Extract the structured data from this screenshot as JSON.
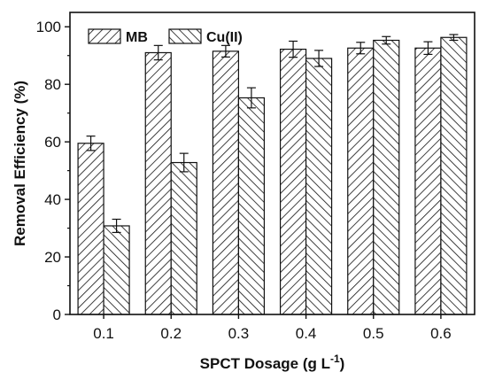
{
  "chart_data": {
    "type": "bar",
    "title": "",
    "xlabel_main": "SPCT Dosage (g L",
    "xlabel_sup": "-1",
    "xlabel_close": ")",
    "ylabel": "Removal Efficiency (%)",
    "categories": [
      "0.1",
      "0.2",
      "0.3",
      "0.4",
      "0.5",
      "0.6"
    ],
    "ylim": [
      0,
      105
    ],
    "yticks": [
      0,
      20,
      40,
      60,
      80,
      100
    ],
    "ytick_labels": [
      "0",
      "20",
      "40",
      "60",
      "80",
      "100"
    ],
    "legend_position": "top-left",
    "grid": false,
    "series": [
      {
        "name": "MB",
        "pattern": "hatch-forward",
        "values": [
          59.5,
          91.0,
          91.5,
          92.2,
          92.6,
          92.6
        ],
        "errors": [
          2.5,
          2.5,
          2.0,
          2.8,
          2.0,
          2.2
        ]
      },
      {
        "name": "Cu(II)",
        "pattern": "hatch-backward",
        "values": [
          30.8,
          52.8,
          75.3,
          89.0,
          95.3,
          96.3
        ],
        "errors": [
          2.3,
          3.2,
          3.5,
          2.8,
          1.3,
          1.0
        ]
      }
    ]
  }
}
